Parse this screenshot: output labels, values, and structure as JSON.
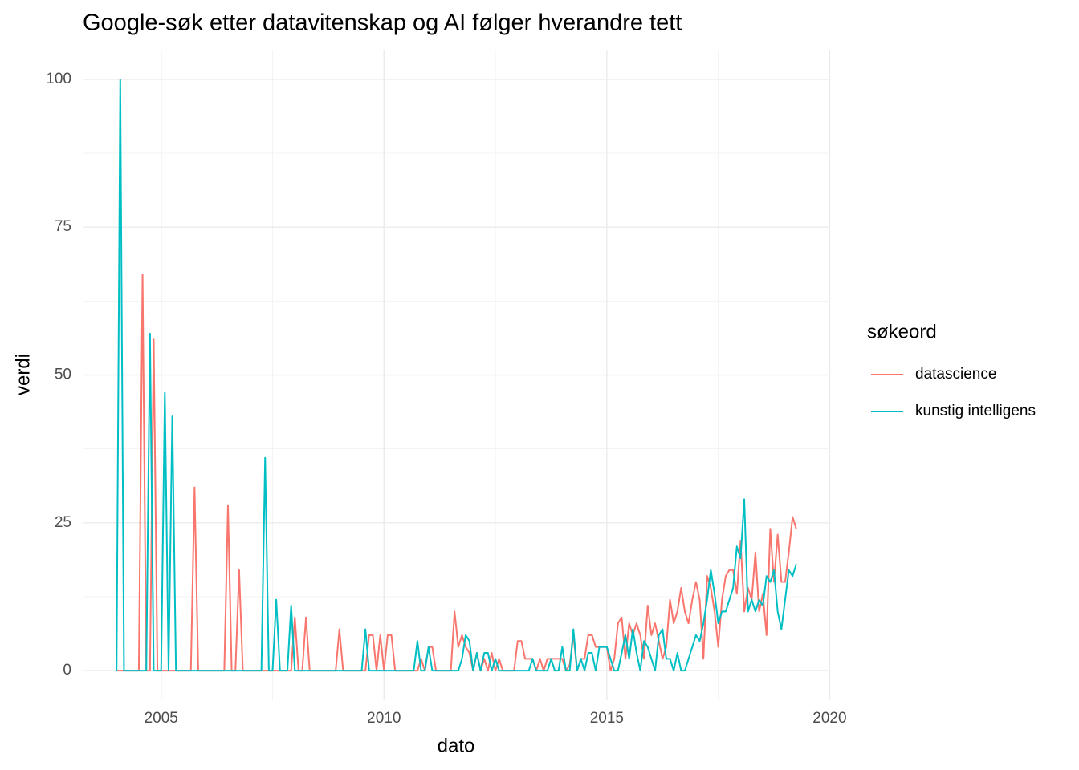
{
  "chart_data": {
    "type": "line",
    "title": "Google-søk etter datavitenskap og AI følger hverandre tett",
    "x_label": "dato",
    "y_label": "verdi",
    "legend_title": "søkeord",
    "legend_position": "right",
    "grid": true,
    "x": [
      2004,
      2004.083,
      2004.167,
      2004.25,
      2004.333,
      2004.417,
      2004.5,
      2004.583,
      2004.667,
      2004.75,
      2004.833,
      2004.917,
      2005,
      2005.083,
      2005.167,
      2005.25,
      2005.333,
      2005.417,
      2005.5,
      2005.583,
      2005.667,
      2005.75,
      2005.833,
      2005.917,
      2006,
      2006.083,
      2006.167,
      2006.25,
      2006.333,
      2006.417,
      2006.5,
      2006.583,
      2006.667,
      2006.75,
      2006.833,
      2006.917,
      2007,
      2007.083,
      2007.167,
      2007.25,
      2007.333,
      2007.417,
      2007.5,
      2007.583,
      2007.667,
      2007.75,
      2007.833,
      2007.917,
      2008,
      2008.083,
      2008.167,
      2008.25,
      2008.333,
      2008.417,
      2008.5,
      2008.583,
      2008.667,
      2008.75,
      2008.833,
      2008.917,
      2009,
      2009.083,
      2009.167,
      2009.25,
      2009.333,
      2009.417,
      2009.5,
      2009.583,
      2009.667,
      2009.75,
      2009.833,
      2009.917,
      2010,
      2010.083,
      2010.167,
      2010.25,
      2010.333,
      2010.417,
      2010.5,
      2010.583,
      2010.667,
      2010.75,
      2010.833,
      2010.917,
      2011,
      2011.083,
      2011.167,
      2011.25,
      2011.333,
      2011.417,
      2011.5,
      2011.583,
      2011.667,
      2011.75,
      2011.833,
      2011.917,
      2012,
      2012.083,
      2012.167,
      2012.25,
      2012.333,
      2012.417,
      2012.5,
      2012.583,
      2012.667,
      2012.75,
      2012.833,
      2012.917,
      2013,
      2013.083,
      2013.167,
      2013.25,
      2013.333,
      2013.417,
      2013.5,
      2013.583,
      2013.667,
      2013.75,
      2013.833,
      2013.917,
      2014,
      2014.083,
      2014.167,
      2014.25,
      2014.333,
      2014.417,
      2014.5,
      2014.583,
      2014.667,
      2014.75,
      2014.833,
      2014.917,
      2015,
      2015.083,
      2015.167,
      2015.25,
      2015.333,
      2015.417,
      2015.5,
      2015.583,
      2015.667,
      2015.75,
      2015.833,
      2015.917,
      2016,
      2016.083,
      2016.167,
      2016.25,
      2016.333,
      2016.417,
      2016.5,
      2016.583,
      2016.667,
      2016.75,
      2016.833,
      2016.917,
      2017,
      2017.083,
      2017.167,
      2017.25,
      2017.333,
      2017.417,
      2017.5,
      2017.583,
      2017.667,
      2017.75,
      2017.833,
      2017.917,
      2018,
      2018.083,
      2018.167,
      2018.25,
      2018.333,
      2018.417,
      2018.5,
      2018.583,
      2018.667,
      2018.75,
      2018.833,
      2018.917,
      2019,
      2019.083,
      2019.167,
      2019.25
    ],
    "series": [
      {
        "name": "datascience",
        "color": "#F8766D",
        "values": [
          0,
          0,
          0,
          0,
          0,
          0,
          0,
          67,
          0,
          0,
          56,
          0,
          0,
          0,
          0,
          0,
          0,
          0,
          0,
          0,
          0,
          31,
          0,
          0,
          0,
          0,
          0,
          0,
          0,
          0,
          28,
          0,
          0,
          17,
          0,
          0,
          0,
          0,
          0,
          0,
          0,
          0,
          0,
          0,
          0,
          0,
          0,
          0,
          9,
          0,
          0,
          9,
          0,
          0,
          0,
          0,
          0,
          0,
          0,
          0,
          7,
          0,
          0,
          0,
          0,
          0,
          0,
          0,
          6,
          6,
          0,
          6,
          0,
          6,
          6,
          0,
          0,
          0,
          0,
          0,
          0,
          0,
          2,
          0,
          4,
          4,
          0,
          0,
          0,
          0,
          0,
          10,
          4,
          6,
          4,
          3,
          0,
          3,
          0,
          2,
          0,
          3,
          0,
          2,
          0,
          0,
          0,
          0,
          5,
          5,
          2,
          2,
          2,
          0,
          2,
          0,
          2,
          2,
          2,
          2,
          2,
          0,
          1,
          6,
          0,
          2,
          2,
          6,
          6,
          4,
          4,
          4,
          4,
          0,
          2,
          8,
          9,
          2,
          8,
          6,
          8,
          6,
          2,
          11,
          6,
          8,
          5,
          2,
          4,
          12,
          8,
          10,
          14,
          10,
          8,
          12,
          15,
          12,
          2,
          16,
          14,
          10,
          4,
          12,
          16,
          17,
          17,
          13,
          22,
          10,
          14,
          12,
          20,
          10,
          13,
          6,
          24,
          15,
          23,
          15,
          15,
          20,
          26,
          24
        ]
      },
      {
        "name": "kunstig intelligens",
        "color": "#00BFC4",
        "values": [
          0,
          100,
          0,
          0,
          0,
          0,
          0,
          0,
          0,
          57,
          0,
          0,
          0,
          47,
          0,
          43,
          0,
          0,
          0,
          0,
          0,
          0,
          0,
          0,
          0,
          0,
          0,
          0,
          0,
          0,
          0,
          0,
          0,
          0,
          0,
          0,
          0,
          0,
          0,
          0,
          36,
          0,
          0,
          12,
          0,
          0,
          0,
          11,
          0,
          0,
          0,
          0,
          0,
          0,
          0,
          0,
          0,
          0,
          0,
          0,
          0,
          0,
          0,
          0,
          0,
          0,
          0,
          7,
          0,
          0,
          0,
          0,
          0,
          0,
          0,
          0,
          0,
          0,
          0,
          0,
          0,
          5,
          0,
          0,
          4,
          0,
          0,
          0,
          0,
          0,
          0,
          0,
          0,
          2,
          6,
          5,
          0,
          3,
          0,
          3,
          3,
          0,
          2,
          0,
          0,
          0,
          0,
          0,
          0,
          0,
          0,
          0,
          2,
          0,
          0,
          0,
          0,
          2,
          0,
          0,
          4,
          0,
          0,
          7,
          0,
          2,
          0,
          3,
          3,
          0,
          4,
          4,
          4,
          2,
          0,
          0,
          3,
          6,
          2,
          7,
          3,
          0,
          5,
          4,
          2,
          0,
          6,
          7,
          2,
          2,
          0,
          3,
          0,
          0,
          2,
          4,
          6,
          5,
          8,
          12,
          17,
          13,
          8,
          10,
          10,
          12,
          14,
          21,
          19,
          29,
          10,
          12,
          10,
          12,
          11,
          16,
          15,
          17,
          10,
          7,
          12,
          17,
          16,
          18
        ]
      }
    ],
    "xlim": [
      2003.24,
      2020.01
    ],
    "ylim": [
      -5,
      105
    ],
    "xticks": [
      2005,
      2010,
      2015,
      2020
    ],
    "yticks": [
      0,
      25,
      50,
      75,
      100
    ],
    "xminorticks": [
      2007.5,
      2012.5,
      2017.5
    ],
    "yminorticks": [
      12.5,
      37.5,
      62.5,
      87.5
    ]
  }
}
